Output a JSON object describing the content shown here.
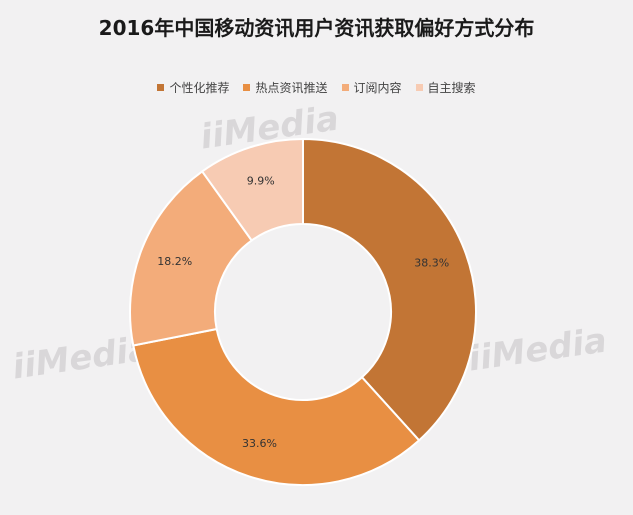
{
  "watermark": "iiMedia",
  "chart_data": {
    "type": "pie",
    "title": "2016年中国移动资讯用户资讯获取偏好方式分布",
    "donut": true,
    "categories": [
      "个性化推荐",
      "热点资讯推送",
      "订阅内容",
      "自主搜索"
    ],
    "values": [
      38.3,
      33.6,
      18.2,
      9.9
    ],
    "labels": [
      "38.3%",
      "33.6%",
      "18.2%",
      "9.9%"
    ],
    "colors": [
      "#c27535",
      "#e88f43",
      "#f3ac7a",
      "#f7cbb3"
    ],
    "legend_position": "top"
  }
}
